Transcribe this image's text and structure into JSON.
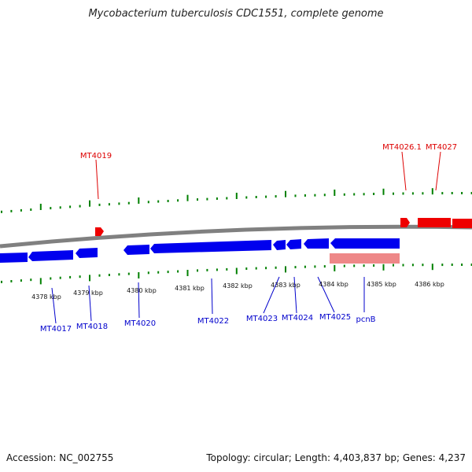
{
  "title": "Mycobacterium tuberculosis CDC1551, complete genome",
  "footer": {
    "accession": "Accession: NC_002755",
    "summary": "Topology: circular; Length: 4,403,837 bp; Genes: 4,237"
  },
  "colors": {
    "reverse_strand_genes": "#0000ee",
    "forward_strand_genes": "#ee0000",
    "pseudo_gene": "#ee8888",
    "backbone": "#808080",
    "tick": "#008000"
  },
  "scale_labels": [
    "4378 kbp",
    "4379 kbp",
    "4380 kbp",
    "4381 kbp",
    "4382 kbp",
    "4383 kbp",
    "4384 kbp",
    "4385 kbp",
    "4386 kbp"
  ],
  "gene_labels": {
    "forward": [
      "MT4019",
      "MT4026.1",
      "MT4027"
    ],
    "reverse": [
      "MT4017",
      "MT4018",
      "MT4020",
      "MT4022",
      "MT4023",
      "MT4024",
      "MT4025",
      "pcnB"
    ]
  }
}
